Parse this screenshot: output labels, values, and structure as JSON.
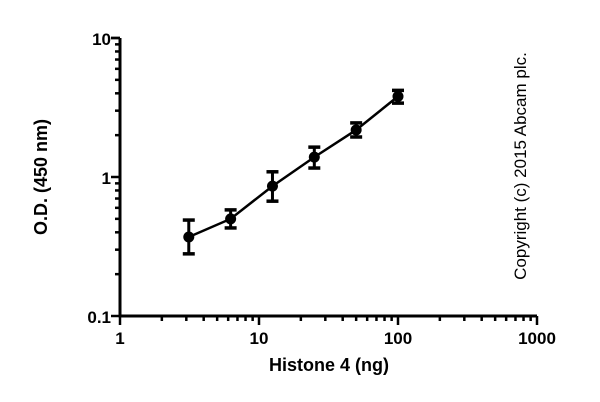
{
  "chart_data": {
    "type": "line",
    "title": "",
    "xlabel": "Histone 4 (ng)",
    "ylabel": "O.D. (450 nm)",
    "xscale": "log",
    "yscale": "log",
    "xlim": [
      1,
      1000
    ],
    "ylim": [
      0.1,
      10
    ],
    "x_ticks": [
      "1",
      "10",
      "100",
      "1000"
    ],
    "y_ticks": [
      "0.1",
      "1",
      "10"
    ],
    "grid": false,
    "legend": null,
    "annotation": "Copyright (c) 2015 Abcam plc.",
    "series": [
      {
        "name": "Histone 4",
        "color": "#000000",
        "marker": "circle",
        "x": [
          3.125,
          6.25,
          12.5,
          25,
          50,
          100
        ],
        "y": [
          0.37,
          0.5,
          0.86,
          1.39,
          2.18,
          3.8
        ],
        "error_low": [
          0.28,
          0.43,
          0.67,
          1.16,
          1.94,
          3.4
        ],
        "error_high": [
          0.49,
          0.58,
          1.09,
          1.64,
          2.45,
          4.2
        ]
      }
    ]
  },
  "labels": {
    "xlabel": "Histone 4 (ng)",
    "ylabel": "O.D. (450 nm)",
    "copyright": "Copyright (c) 2015 Abcam plc.",
    "x_ticks": [
      "1",
      "10",
      "100",
      "1000"
    ],
    "y_ticks": [
      "0.1",
      "1",
      "10"
    ]
  }
}
